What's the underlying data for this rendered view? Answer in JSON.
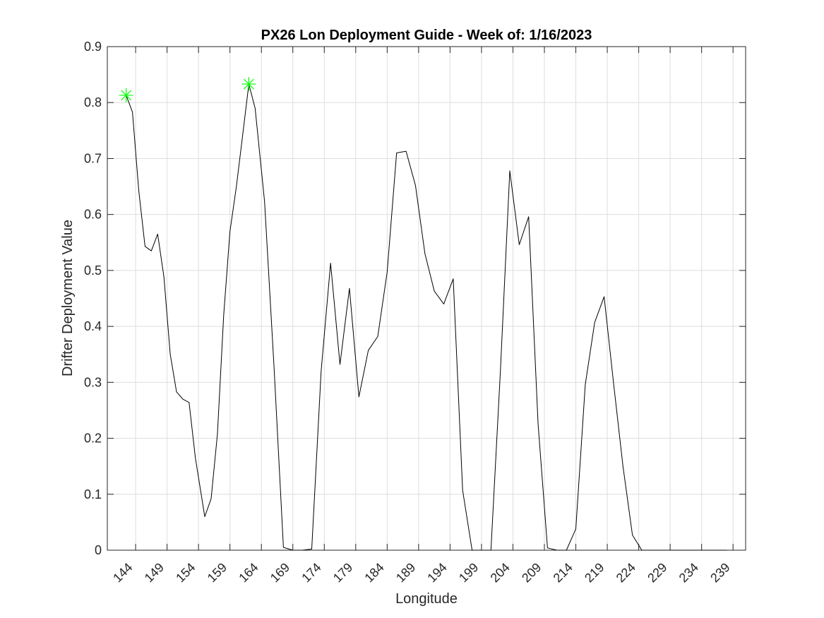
{
  "chart_data": {
    "type": "line",
    "title": "PX26 Lon Deployment Guide - Week of: 1/16/2023",
    "xlabel": "Longitude",
    "ylabel": "Drifter Deployment Value",
    "xlim": [
      139.5,
      241
    ],
    "ylim": [
      0,
      0.9
    ],
    "grid": true,
    "x_ticks": [
      144,
      149,
      154,
      159,
      164,
      169,
      174,
      179,
      184,
      189,
      194,
      199,
      204,
      209,
      214,
      219,
      224,
      229,
      234,
      239
    ],
    "x_tick_labels": [
      "144",
      "149",
      "154",
      "159",
      "164",
      "169",
      "174",
      "179",
      "184",
      "189",
      "194",
      "199",
      "204",
      "209",
      "214",
      "219",
      "224",
      "229",
      "234",
      "239"
    ],
    "y_ticks": [
      0,
      0.1,
      0.2,
      0.3,
      0.4,
      0.5,
      0.6,
      0.7,
      0.8,
      0.9
    ],
    "y_tick_labels": [
      "0",
      "0.1",
      "0.2",
      "0.3",
      "0.4",
      "0.5",
      "0.6",
      "0.7",
      "0.8",
      "0.9"
    ],
    "series": [
      {
        "color": "#000000",
        "x": [
          142.5,
          143.5,
          144.5,
          145.5,
          146.5,
          147.5,
          148.5,
          149.5,
          150.5,
          151.5,
          152.5,
          153.5,
          155.0,
          156.0,
          157.0,
          158.0,
          159.0,
          160.0,
          161.0,
          162.0,
          163.0,
          164.5,
          166.0,
          167.5,
          169.0,
          170.5,
          172.0,
          173.5,
          175.0,
          176.5,
          178.0,
          179.5,
          181.0,
          182.5,
          184.0,
          185.5,
          187.0,
          188.5,
          190.0,
          191.5,
          193.0,
          194.5,
          196.0,
          197.5,
          199.0,
          200.5,
          202.0,
          203.5,
          205.0,
          206.5,
          208.0,
          209.5,
          211.0,
          212.5,
          214.0,
          215.5,
          217.0,
          218.5,
          220.0,
          221.5,
          223.0,
          224.5,
          226.0,
          238.0
        ],
        "y": [
          0.813,
          0.783,
          0.643,
          0.543,
          0.535,
          0.565,
          0.488,
          0.35,
          0.283,
          0.27,
          0.264,
          0.165,
          0.06,
          0.092,
          0.207,
          0.42,
          0.57,
          0.648,
          0.74,
          0.833,
          0.79,
          0.623,
          0.33,
          0.005,
          0.0,
          0.0,
          0.002,
          0.32,
          0.513,
          0.332,
          0.468,
          0.274,
          0.357,
          0.382,
          0.497,
          0.71,
          0.713,
          0.652,
          0.53,
          0.463,
          0.44,
          0.485,
          0.107,
          0.0,
          0.0,
          0.0,
          0.32,
          0.678,
          0.546,
          0.596,
          0.225,
          0.004,
          0.0,
          0.0,
          0.038,
          0.296,
          0.407,
          0.453,
          0.298,
          0.15,
          0.027,
          0.0,
          0.0,
          0.0
        ]
      }
    ],
    "markers": {
      "color": "#00ff00",
      "symbol": "asterisk",
      "points": [
        {
          "x": 142.5,
          "y": 0.813
        },
        {
          "x": 162.0,
          "y": 0.833
        }
      ]
    }
  }
}
